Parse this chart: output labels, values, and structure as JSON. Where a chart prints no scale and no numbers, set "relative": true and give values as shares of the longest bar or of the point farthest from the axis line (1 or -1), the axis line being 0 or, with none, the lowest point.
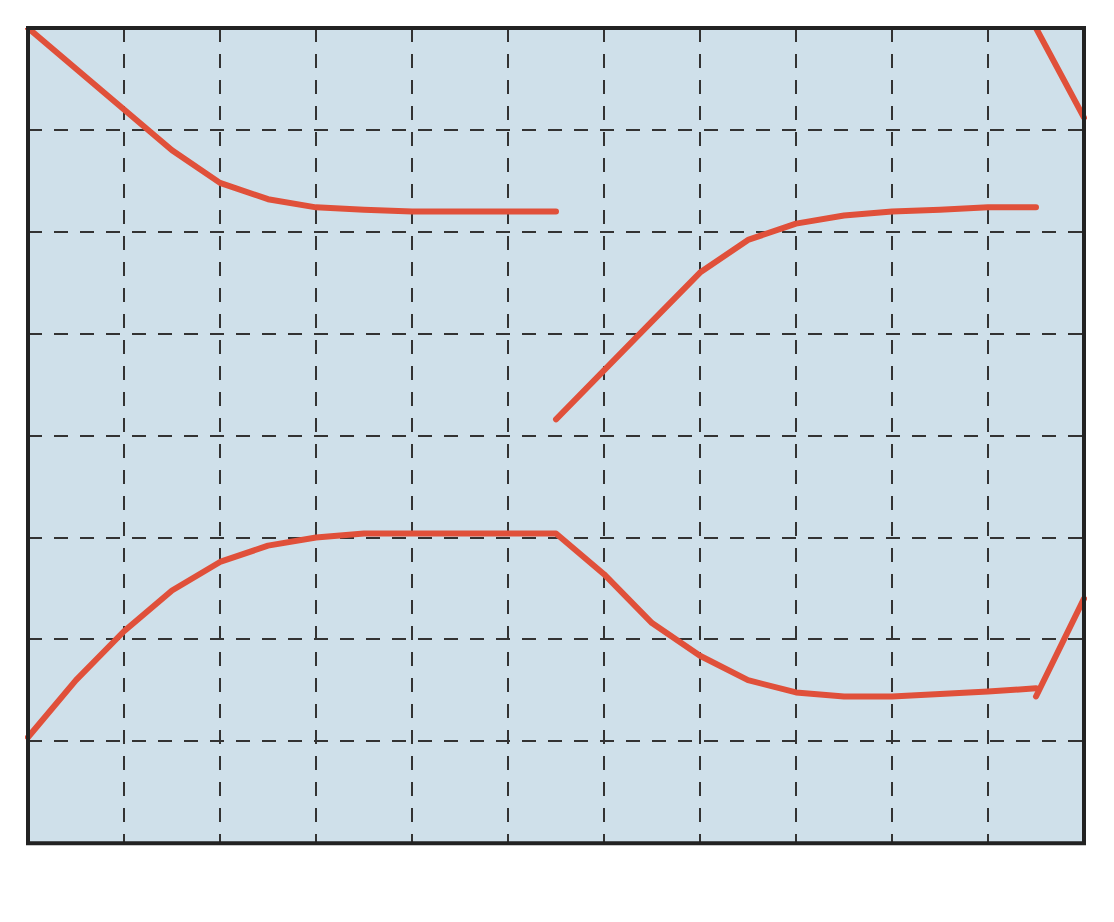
{
  "chart_data": {
    "type": "line",
    "relative": true,
    "categories": [
      null,
      null,
      null,
      null,
      null,
      null,
      null,
      null,
      null,
      null,
      null,
      null,
      null,
      null,
      null,
      null,
      null,
      null,
      null,
      null,
      null,
      null,
      null
    ],
    "grid": true,
    "legend": false,
    "marker": "none",
    "line_style": "solid",
    "series": [
      {
        "color": "#e0503a",
        "values": [
          1.0,
          0.95,
          0.9,
          0.85,
          0.81,
          0.79,
          0.78,
          0.777,
          0.775,
          0.775,
          0.775,
          0.775,
          null,
          null,
          null,
          null,
          null,
          null,
          null,
          null,
          null,
          null,
          null
        ]
      },
      {
        "color": "#e0503a",
        "values": [
          0.13,
          0.2,
          0.26,
          0.31,
          0.345,
          0.365,
          0.375,
          0.38,
          0.38,
          0.38,
          0.38,
          0.38,
          0.33,
          0.27,
          0.23,
          0.2,
          0.185,
          0.18,
          0.18,
          0.183,
          0.186,
          0.19,
          null
        ]
      },
      {
        "color": "#e0503a",
        "values": [
          null,
          null,
          null,
          null,
          null,
          null,
          null,
          null,
          null,
          null,
          null,
          0.52,
          0.58,
          0.64,
          0.7,
          0.74,
          0.76,
          0.77,
          0.775,
          0.777,
          0.78,
          0.78,
          null
        ]
      },
      {
        "color": "#e0503a",
        "values": [
          null,
          null,
          null,
          null,
          null,
          null,
          null,
          null,
          null,
          null,
          null,
          null,
          null,
          null,
          null,
          null,
          null,
          null,
          null,
          null,
          null,
          0.18,
          0.3
        ]
      },
      {
        "color": "#e0503a",
        "values": [
          null,
          null,
          null,
          null,
          null,
          null,
          null,
          null,
          null,
          null,
          null,
          null,
          null,
          null,
          null,
          null,
          null,
          null,
          null,
          null,
          null,
          1.0,
          0.89
        ]
      }
    ]
  }
}
